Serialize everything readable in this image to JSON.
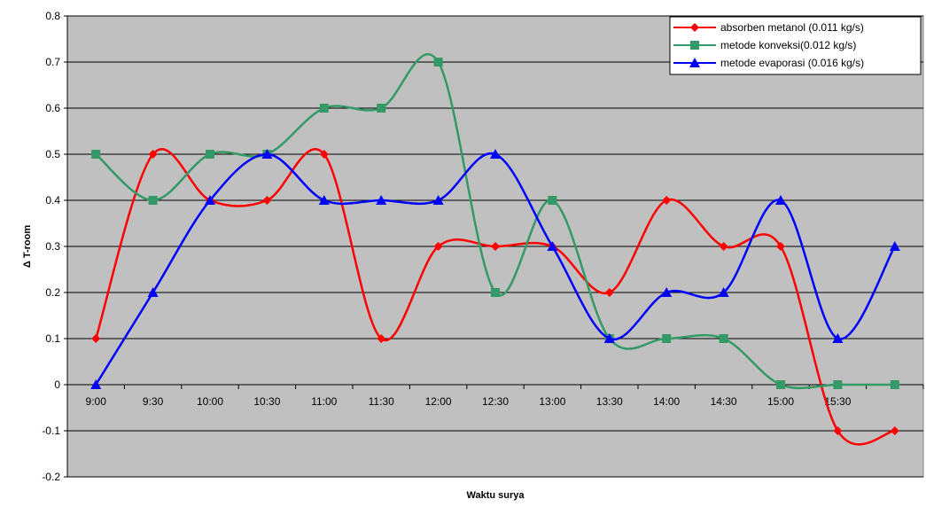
{
  "chart_data": {
    "type": "line",
    "title": "",
    "xlabel": "Waktu surya",
    "ylabel": "Δ T-room",
    "ylim": [
      -0.2,
      0.8
    ],
    "y_ticks": [
      "-0.2",
      "-0.1",
      "0",
      "0.1",
      "0.2",
      "0.3",
      "0.4",
      "0.5",
      "0.6",
      "0.7",
      "0.8"
    ],
    "y_tick_values": [
      -0.2,
      -0.1,
      0,
      0.1,
      0.2,
      0.3,
      0.4,
      0.5,
      0.6,
      0.7,
      0.8
    ],
    "categories": [
      "9:00",
      "9:30",
      "10:00",
      "10:30",
      "11:00",
      "11:30",
      "12:00",
      "12:30",
      "13:00",
      "13:30",
      "14:00",
      "14:30",
      "15:00",
      "15:30",
      ""
    ],
    "grid": true,
    "smooth": true,
    "legend_position": "top-right",
    "plot_background": "#c0c0c0",
    "series": [
      {
        "name": "absorben metanol (0.011 kg/s)",
        "color": "#ff0000",
        "marker": "diamond",
        "values": [
          0.1,
          0.5,
          0.4,
          0.4,
          0.5,
          0.1,
          0.3,
          0.3,
          0.3,
          0.2,
          0.4,
          0.3,
          0.3,
          -0.1,
          -0.1
        ]
      },
      {
        "name": "metode konveksi(0.012 kg/s)",
        "color": "#339966",
        "marker": "square",
        "values": [
          0.5,
          0.4,
          0.5,
          0.5,
          0.6,
          0.6,
          0.7,
          0.2,
          0.4,
          0.1,
          0.1,
          0.1,
          0.0,
          0.0,
          0.0
        ]
      },
      {
        "name": "metode evaporasi (0.016 kg/s)",
        "color": "#0000ff",
        "marker": "triangle",
        "values": [
          0.0,
          0.2,
          0.4,
          0.5,
          0.4,
          0.4,
          0.4,
          0.5,
          0.3,
          0.1,
          0.2,
          0.2,
          0.4,
          0.1,
          0.3
        ]
      }
    ]
  }
}
